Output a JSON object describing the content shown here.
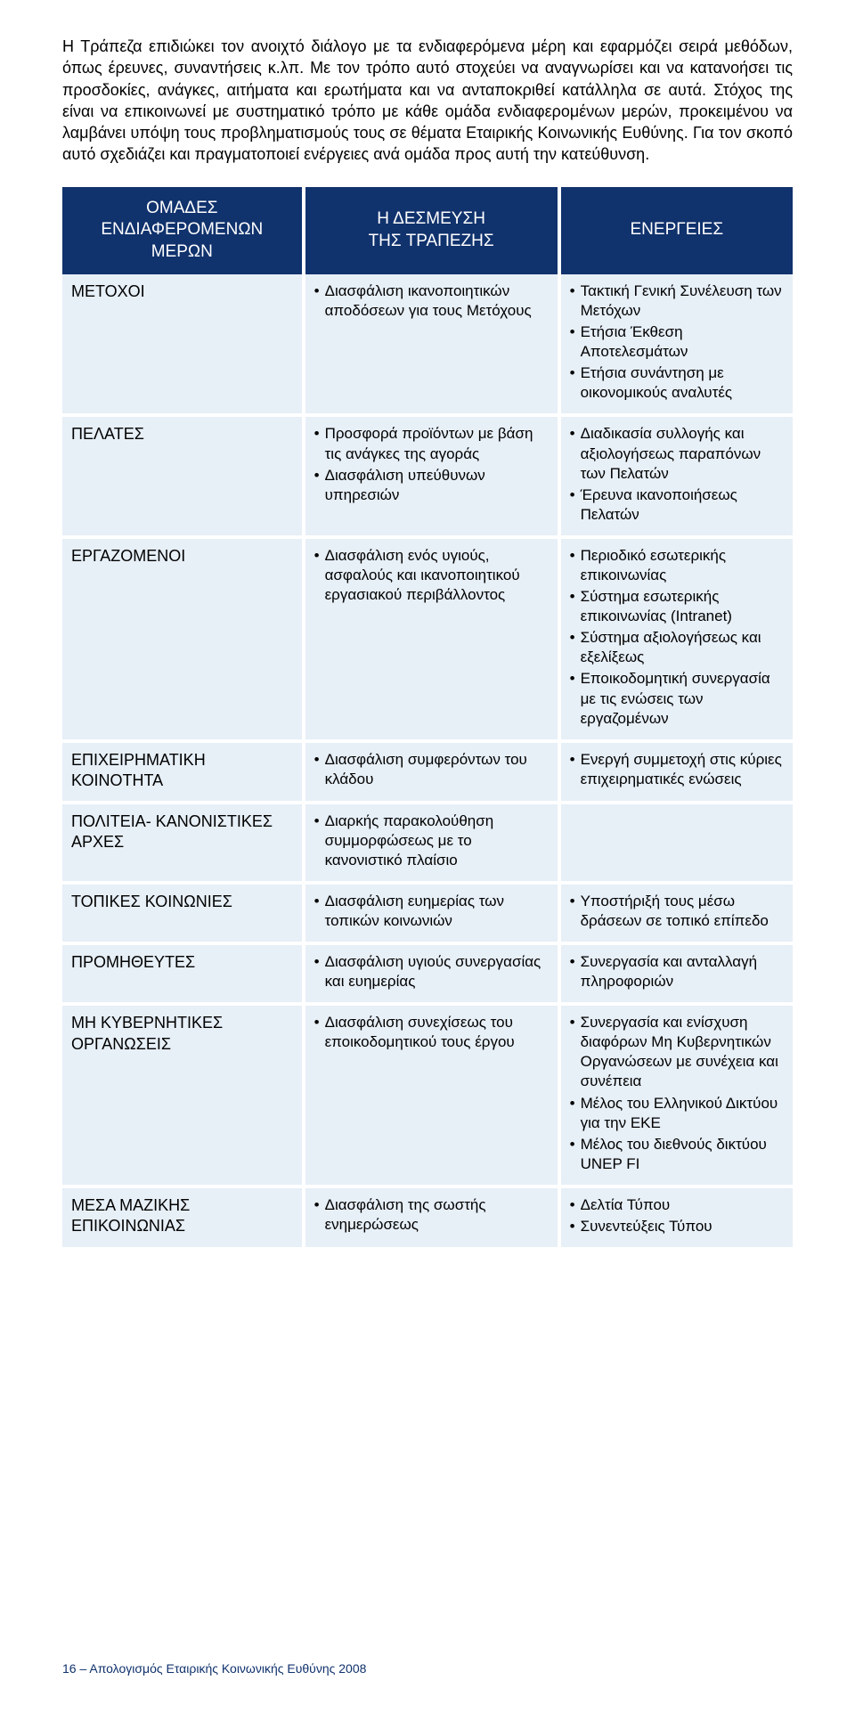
{
  "intro": "Η Τράπεζα επιδιώκει τον ανοιχτό διάλογο με τα ενδιαφερόμενα μέρη και εφαρμόζει σειρά μεθόδων, όπως έρευνες, συναντήσεις κ.λπ. Με τον τρόπο αυτό στοχεύει να αναγνωρίσει και να κατανοήσει τις προσδοκίες, ανάγκες, αιτήματα και ερωτήματα και να ανταποκριθεί κατάλληλα σε αυτά. Στόχος της είναι να επικοινωνεί με συστηματικό τρόπο με κάθε ομάδα ενδιαφερομένων μερών, προκειμένου να λαμβάνει υπόψη τους προβληματισμούς τους σε θέματα Εταιρικής Κοινωνικής Ευθύνης. Για τον σκοπό αυτό σχεδιάζει και πραγματοποιεί ενέργειες ανά ομάδα προς αυτή την κατεύθυνση.",
  "headers": {
    "groups": "ΟΜΑΔΕΣ\nΕΝΔΙΑΦΕΡΟΜΕΝΩΝ\nΜΕΡΩΝ",
    "commitment": "Η ΔΕΣΜΕΥΣΗ\nΤΗΣ ΤΡΑΠΕΖΗΣ",
    "actions": "ΕΝΕΡΓΕΙΕΣ"
  },
  "rows": [
    {
      "group": "ΜΕΤΟΧΟΙ",
      "commitment": [
        "Διασφάλιση ικανοποιητικών αποδόσεων για τους Μετόχους"
      ],
      "actions": [
        "Τακτική Γενική Συνέλευση των Μετόχων",
        "Ετήσια Έκθεση Αποτελεσμάτων",
        "Ετήσια συνάντηση με οικονομικούς αναλυτές"
      ]
    },
    {
      "group": "ΠΕΛΑΤΕΣ",
      "commitment": [
        "Προσφορά προϊόντων με βάση τις ανάγκες της αγοράς",
        "Διασφάλιση υπεύθυνων υπηρεσιών"
      ],
      "actions": [
        "Διαδικασία συλλογής και αξιολογήσεως παραπόνων των Πελατών",
        "Έρευνα ικανοποιήσεως Πελατών"
      ]
    },
    {
      "group": "ΕΡΓΑΖΟΜΕΝΟΙ",
      "commitment": [
        "Διασφάλιση ενός υγιούς, ασφαλούς και ικανοποιητικού εργασιακού περιβάλλοντος"
      ],
      "actions": [
        "Περιοδικό εσωτερικής επικοινωνίας",
        "Σύστημα εσωτερικής επικοινωνίας (Intranet)",
        "Σύστημα αξιολογήσεως και εξελίξεως",
        "Εποικοδομητική συνεργασία με τις ενώσεις των εργαζομένων"
      ]
    },
    {
      "group": "ΕΠΙΧΕΙΡΗΜΑΤΙΚΗ ΚΟΙΝΟΤΗΤΑ",
      "commitment": [
        "Διασφάλιση συμφερόντων του κλάδου"
      ],
      "actions": [
        "Ενεργή συμμετοχή στις κύριες επιχειρηματικές ενώσεις"
      ]
    },
    {
      "group": "ΠΟΛΙΤΕΙΑ- ΚΑΝΟΝΙΣΤΙΚΕΣ ΑΡΧΕΣ",
      "commitment": [
        "Διαρκής παρακολούθηση συμμορφώσεως με το κανονιστικό πλαίσιο"
      ],
      "actions": []
    },
    {
      "group": "ΤΟΠΙΚΕΣ ΚΟΙΝΩΝΙΕΣ",
      "commitment": [
        "Διασφάλιση ευημερίας των τοπικών κοινωνιών"
      ],
      "actions": [
        "Υποστήριξή τους μέσω δράσεων σε τοπικό επίπεδο"
      ]
    },
    {
      "group": "ΠΡΟΜΗΘΕΥΤΕΣ",
      "commitment": [
        "Διασφάλιση υγιούς συνεργασίας και ευημερίας"
      ],
      "actions": [
        "Συνεργασία και ανταλλαγή πληροφοριών"
      ]
    },
    {
      "group": "ΜΗ ΚΥΒΕΡΝΗΤΙΚΕΣ ΟΡΓΑΝΩΣΕΙΣ",
      "commitment": [
        "Διασφάλιση συνεχίσεως του εποικοδομητικού τους έργου"
      ],
      "actions": [
        "Συνεργασία και ενίσχυση διαφόρων Μη Κυβερνητικών Οργανώσεων με συνέχεια και συνέπεια",
        "Μέλος του Ελληνικού Δικτύου για την ΕΚΕ",
        "Μέλος του διεθνούς δικτύου UNEP FI"
      ]
    },
    {
      "group": "ΜΕΣΑ ΜΑΖΙΚΗΣ ΕΠΙΚΟΙΝΩΝΙΑΣ",
      "commitment": [
        "Διασφάλιση της σωστής ενημερώσεως"
      ],
      "actions": [
        "Δελτία Τύπου",
        "Συνεντεύξεις Τύπου"
      ]
    }
  ],
  "styles": {
    "header_bg": "#10326d",
    "header_color": "#ffffff",
    "cell_bg": "#e7eff7",
    "gap_color": "#ffffff",
    "intro_fontsize": 18,
    "header_fontsize": 19,
    "cell_fontsize": 17,
    "footer_color": "#10326d"
  },
  "footer": "16 – Απολογισμός Εταιρικής Κοινωνικής Ευθύνης 2008"
}
